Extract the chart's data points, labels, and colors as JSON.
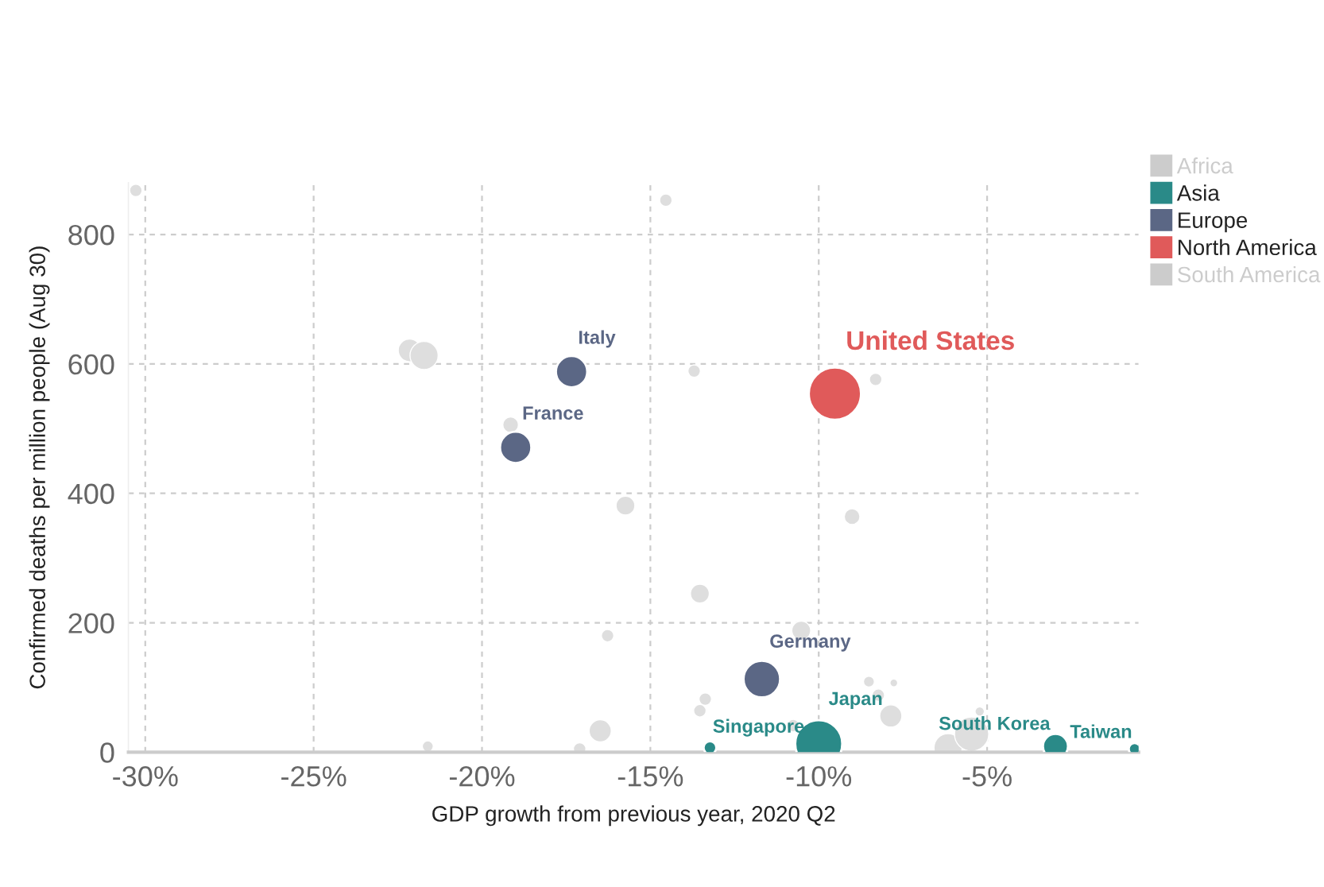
{
  "chart_data": {
    "type": "bubble",
    "xlabel": "GDP growth from previous year, 2020 Q2",
    "ylabel": "Confirmed deaths per million people (Aug 30)",
    "xlim": [
      -30.5,
      -0.5
    ],
    "ylim": [
      0,
      880
    ],
    "xticks": [
      {
        "value": -30,
        "label": "-30%"
      },
      {
        "value": -25,
        "label": "-25%"
      },
      {
        "value": -20,
        "label": "-20%"
      },
      {
        "value": -15,
        "label": "-15%"
      },
      {
        "value": -10,
        "label": "-10%"
      },
      {
        "value": -5,
        "label": "-5%"
      }
    ],
    "yticks": [
      0,
      200,
      400,
      600,
      800
    ],
    "grid": true,
    "legend": "right",
    "series": [
      {
        "name": "Africa",
        "color": "#cccccc"
      },
      {
        "name": "Asia",
        "color": "#2a8a88",
        "x": [
          -10.0,
          -13.23,
          -2.97,
          -0.62
        ],
        "values": [
          13,
          7,
          9,
          5
        ],
        "sizes": [
          0.81,
          0.06,
          0.23,
          0.05
        ]
      },
      {
        "name": "Europe",
        "color": "#5b6785",
        "x": [
          -17.34,
          -19.0,
          -11.69
        ],
        "values": [
          588,
          471,
          113
        ],
        "sizes": [
          0.36,
          0.36,
          0.49
        ]
      },
      {
        "name": "North America",
        "color": "#e05a5a",
        "x": [
          -9.52
        ],
        "values": [
          554
        ],
        "sizes": [
          1
        ]
      },
      {
        "name": "South America",
        "color": "#cccccc"
      },
      {
        "color": "#dedede",
        "x": [
          -30.28,
          -14.54,
          -22.15,
          -21.72,
          -19.15,
          -15.74,
          -13.7,
          -13.53,
          -16.27,
          -16.49,
          -21.61,
          -17.1,
          -13.37,
          -13.53,
          -8.31,
          -9.01,
          -10.52,
          -8.51,
          -7.77,
          -8.23,
          -7.86,
          -10.76,
          -6.16,
          -5.46,
          -5.22
        ],
        "values": [
          868,
          853,
          621,
          613,
          506,
          381,
          589,
          245,
          180,
          33,
          9,
          5,
          82,
          64,
          576,
          364,
          188,
          109,
          107,
          88,
          56,
          41,
          7,
          28,
          63
        ],
        "sizes": [
          0.057,
          0.057,
          0.19,
          0.29,
          0.09,
          0.13,
          0.057,
          0.13,
          0.057,
          0.18,
          0.044,
          0.057,
          0.057,
          0.057,
          0.057,
          0.09,
          0.13,
          0.044,
          0.022,
          0.057,
          0.18,
          0.057,
          0.29,
          0.43,
          0.032
        ]
      }
    ],
    "annotations": [
      {
        "text": "United States",
        "x": -9.52,
        "y": 554
      },
      {
        "text": "Italy",
        "x": -17.34,
        "y": 588
      },
      {
        "text": "France",
        "x": -19.0,
        "y": 471
      },
      {
        "text": "Germany",
        "x": -11.69,
        "y": 113
      },
      {
        "text": "Japan",
        "x": -10.0,
        "y": 13
      },
      {
        "text": "Singapore",
        "x": -13.23,
        "y": 7
      },
      {
        "text": "South Korea",
        "x": -2.97,
        "y": 9
      },
      {
        "text": "Taiwan",
        "x": -0.62,
        "y": 5
      }
    ]
  }
}
